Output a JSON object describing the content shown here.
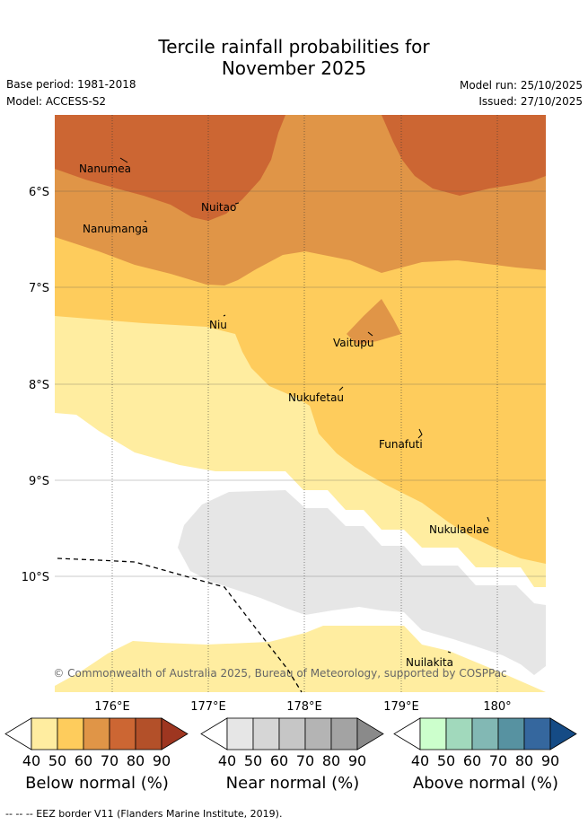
{
  "header": {
    "title_line1": "Tercile rainfall probabilities for",
    "title_line2": "November 2025",
    "base_period": "Base period: 1981-2018",
    "model": "Model: ACCESS-S2",
    "model_run": "Model run: 25/10/2025",
    "issued": "Issued: 27/10/2025"
  },
  "map": {
    "lat_labels": [
      "6°S",
      "7°S",
      "8°S",
      "9°S",
      "10°S"
    ],
    "lon_labels": [
      "176°E",
      "177°E",
      "178°E",
      "179°E",
      "180°"
    ],
    "places": {
      "nanumea": "Nanumea",
      "nuitao": "Nuitao",
      "nanumanga": "Nanumanga",
      "niu": "Niu",
      "vaitupu": "Vaitupu",
      "nukufetau": "Nukufetau",
      "funafuti": "Funafuti",
      "nukulaelae": "Nukulaelae",
      "nuilakita": "Nuilakita"
    },
    "copyright": "© Commonwealth of Australia 2025, Bureau of Meteorology, supported by COSPPac"
  },
  "legend": {
    "tick_labels": [
      "40",
      "50",
      "60",
      "70",
      "80",
      "90"
    ],
    "below": {
      "title": "Below normal (%)",
      "colors": [
        "#ffeda0",
        "#fecc5c",
        "#e09547",
        "#cc6633",
        "#b35029",
        "#9e3620"
      ]
    },
    "near": {
      "title": "Near normal (%)",
      "colors": [
        "#e6e6e6",
        "#d6d6d6",
        "#c6c6c6",
        "#b4b4b4",
        "#a3a3a3",
        "#8a8a8a"
      ]
    },
    "above": {
      "title": "Above normal (%)",
      "colors": [
        "#ccffcc",
        "#a1d9bc",
        "#82b8b4",
        "#5792a1",
        "#35679e",
        "#154b85"
      ]
    }
  },
  "footer": {
    "eez_note": "--  --  -- EEZ border V11 (Flanders Marine Institute, 2019)."
  }
}
